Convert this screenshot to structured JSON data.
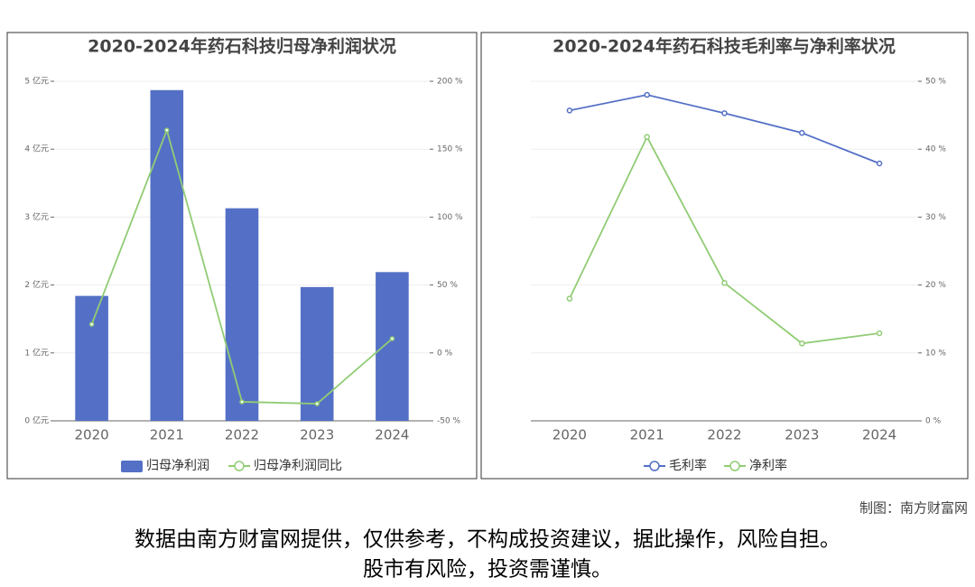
{
  "chart_data": [
    {
      "type": "bar",
      "title": "2020-2024年药石科技归母净利润状况",
      "categories": [
        "2020",
        "2021",
        "2022",
        "2023",
        "2024"
      ],
      "series": [
        {
          "name": "归母净利润",
          "type": "bar",
          "color": "#5470c6",
          "values": [
            1.84,
            4.87,
            3.13,
            1.97,
            2.19
          ]
        },
        {
          "name": "归母净利润同比",
          "type": "line",
          "axis": "y2",
          "color": "#91cc75",
          "values": [
            21.1,
            164,
            -36,
            -37.4,
            10.5
          ]
        }
      ],
      "ylim": [
        0,
        5
      ],
      "yticks": [
        {
          "value": 0,
          "label": "0 亿元"
        },
        {
          "value": 1,
          "label": "1 亿元"
        },
        {
          "value": 2,
          "label": "2 亿元"
        },
        {
          "value": 3,
          "label": "3 亿元"
        },
        {
          "value": 4,
          "label": "4 亿元"
        },
        {
          "value": 5,
          "label": "5 亿元"
        }
      ],
      "y2lim": [
        -50,
        200
      ],
      "y2ticks": [
        {
          "value": -50,
          "label": "-50 %"
        },
        {
          "value": 0,
          "label": "0 %"
        },
        {
          "value": 50,
          "label": "50 %"
        },
        {
          "value": 100,
          "label": "100 %"
        },
        {
          "value": 150,
          "label": "150 %"
        },
        {
          "value": 200,
          "label": "200 %"
        }
      ],
      "grid": true,
      "legend": "bottom"
    },
    {
      "type": "line",
      "title": "2020-2024年药石科技毛利率与净利率状况",
      "categories": [
        "2020",
        "2021",
        "2022",
        "2023",
        "2024"
      ],
      "series": [
        {
          "name": "毛利率",
          "type": "line",
          "axis": "y2",
          "color": "#5470c6",
          "values": [
            45.7,
            48.0,
            45.3,
            42.4,
            37.9
          ]
        },
        {
          "name": "净利率",
          "type": "line",
          "axis": "y2",
          "color": "#91cc75",
          "values": [
            18.0,
            41.8,
            20.3,
            11.4,
            12.9
          ]
        }
      ],
      "y2lim": [
        0,
        50
      ],
      "y2ticks": [
        {
          "value": 0,
          "label": "0 %"
        },
        {
          "value": 10,
          "label": "10 %"
        },
        {
          "value": 20,
          "label": "20 %"
        },
        {
          "value": 30,
          "label": "30 %"
        },
        {
          "value": 40,
          "label": "40 %"
        },
        {
          "value": 50,
          "label": "50 %"
        }
      ],
      "grid": true,
      "legend": "bottom"
    }
  ],
  "credit": "制图：南方财富网",
  "disclaimer": [
    "数据由南方财富网提供，仅供参考，不构成投资建议，据此操作，风险自担。",
    "股市有风险，投资需谨慎。"
  ]
}
